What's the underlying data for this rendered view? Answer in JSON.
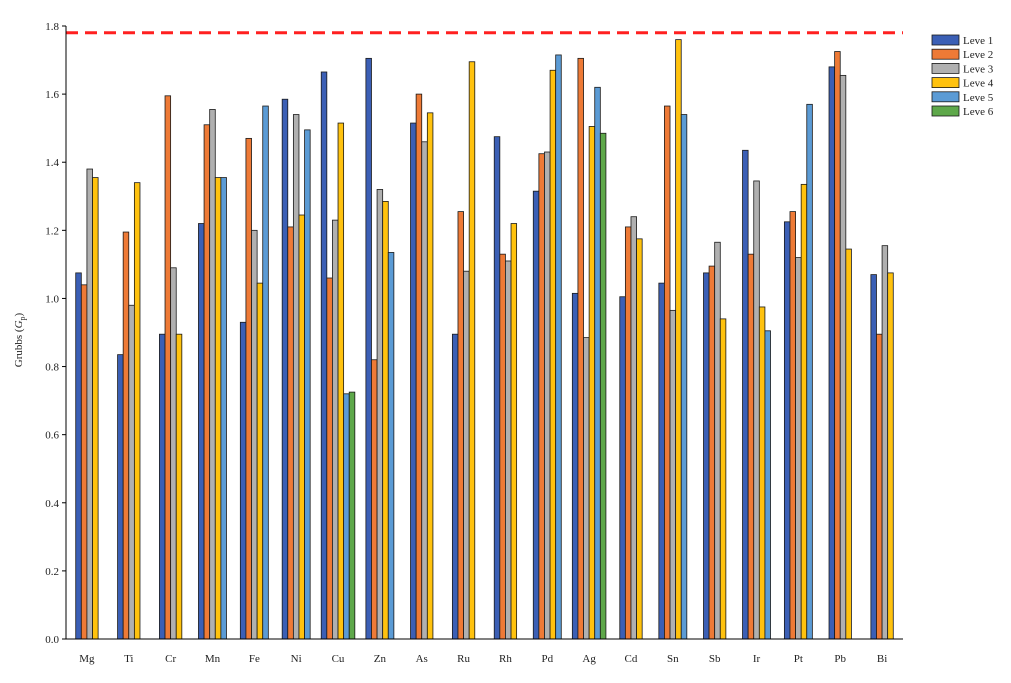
{
  "chart_data": {
    "type": "bar",
    "title": "",
    "xlabel": "",
    "ylabel_main": "Grubbs (",
    "ylabel_symbol": "G",
    "ylabel_sub": "p",
    "ylabel_end": ")",
    "ylim": [
      0,
      1.8
    ],
    "yticks": [
      "0.0",
      "0.2",
      "0.4",
      "0.6",
      "0.8",
      "1.0",
      "1.2",
      "1.4",
      "1.6",
      "1.8"
    ],
    "threshold": 1.78,
    "threshold_color": "#ff2020",
    "legend_position": "top-right",
    "categories": [
      "Mg",
      "Ti",
      "Cr",
      "Mn",
      "Fe",
      "Ni",
      "Cu",
      "Zn",
      "As",
      "Ru",
      "Rh",
      "Pd",
      "Ag",
      "Cd",
      "Sn",
      "Sb",
      "Ir",
      "Pt",
      "Pb",
      "Bi"
    ],
    "series": [
      {
        "name": "Leve 1",
        "color": "#3b5fb5",
        "values": [
          1.075,
          0.835,
          0.895,
          1.22,
          0.93,
          1.585,
          1.665,
          1.705,
          1.515,
          0.895,
          1.475,
          1.315,
          1.015,
          1.005,
          1.045,
          1.075,
          1.435,
          1.225,
          1.68,
          1.07
        ]
      },
      {
        "name": "Leve 2",
        "color": "#ee7a36",
        "values": [
          1.04,
          1.195,
          1.595,
          1.51,
          1.47,
          1.21,
          1.06,
          0.82,
          1.6,
          1.255,
          1.13,
          1.425,
          1.705,
          1.21,
          1.565,
          1.095,
          1.13,
          1.255,
          1.725,
          0.895
        ]
      },
      {
        "name": "Leve 3",
        "color": "#b0b0b0",
        "values": [
          1.38,
          0.98,
          1.09,
          1.555,
          1.2,
          1.54,
          1.23,
          1.32,
          1.46,
          1.08,
          1.11,
          1.43,
          0.885,
          1.24,
          0.965,
          1.165,
          1.345,
          1.12,
          1.655,
          1.155
        ]
      },
      {
        "name": "Leve 4",
        "color": "#ffc20e",
        "values": [
          1.355,
          1.34,
          0.895,
          1.355,
          1.045,
          1.245,
          1.515,
          1.285,
          1.545,
          1.695,
          1.22,
          1.67,
          1.505,
          1.175,
          1.76,
          0.94,
          0.975,
          1.335,
          1.145,
          1.075
        ]
      },
      {
        "name": "Leve 5",
        "color": "#5b9bd5",
        "values": [
          null,
          null,
          null,
          1.355,
          1.565,
          1.495,
          0.72,
          1.135,
          null,
          null,
          null,
          1.715,
          1.62,
          null,
          1.54,
          null,
          0.905,
          1.57,
          null,
          null
        ]
      },
      {
        "name": "Leve 6",
        "color": "#5ea84a",
        "values": [
          null,
          null,
          null,
          null,
          null,
          null,
          0.725,
          null,
          null,
          null,
          null,
          null,
          1.485,
          null,
          null,
          null,
          null,
          null,
          null,
          null
        ]
      }
    ]
  }
}
